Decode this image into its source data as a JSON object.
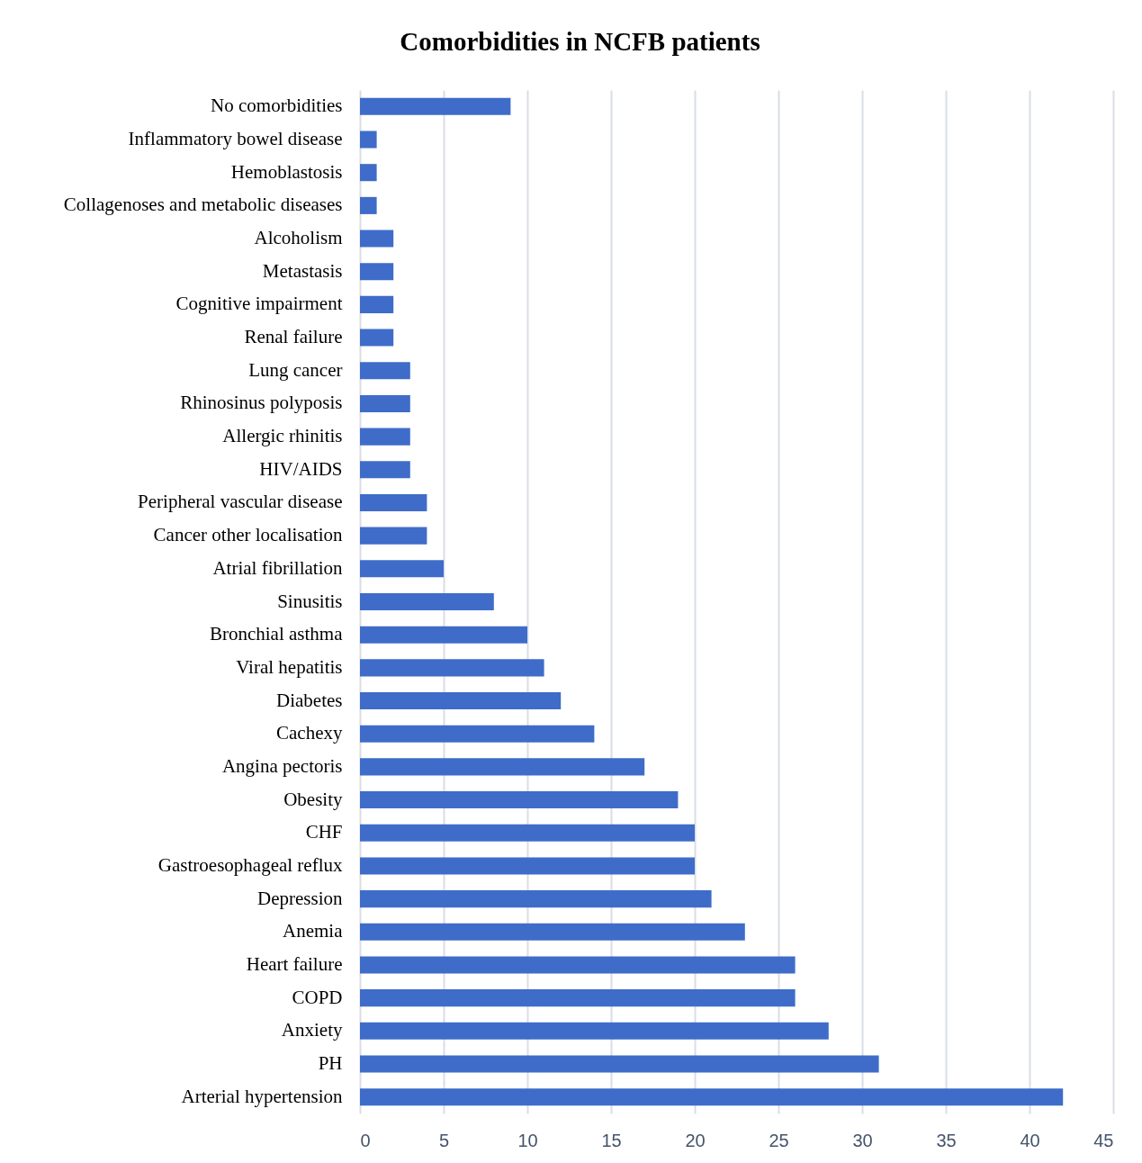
{
  "chart_data": {
    "type": "bar",
    "title": "Comorbidities in NCFB patients",
    "orientation": "horizontal",
    "categories": [
      "No comorbidities",
      "Inflammatory bowel disease",
      "Hemoblastosis",
      "Collagenoses and metabolic diseases",
      "Alcoholism",
      "Metastasis",
      "Cognitive impairment",
      "Renal failure",
      "Lung cancer",
      "Rhinosinus polyposis",
      "Allergic rhinitis",
      "HIV/AIDS",
      "Peripheral vascular disease",
      "Cancer other localisation",
      "Atrial fibrillation",
      "Sinusitis",
      "Bronchial asthma",
      "Viral hepatitis",
      "Diabetes",
      "Cachexy",
      "Angina pectoris",
      "Obesity",
      "CHF",
      "Gastroesophageal reflux",
      "Depression",
      "Anemia",
      "Heart failure",
      "COPD",
      "Anxiety",
      "PH",
      "Arterial hypertension"
    ],
    "values": [
      9,
      1,
      1,
      1,
      2,
      2,
      2,
      2,
      3,
      3,
      3,
      3,
      4,
      4,
      5,
      8,
      10,
      11,
      12,
      14,
      17,
      19,
      20,
      20,
      21,
      23,
      26,
      26,
      28,
      31,
      42
    ],
    "color": "#3f6cc9",
    "xlim": [
      0,
      45
    ],
    "xticks": [
      0,
      5,
      10,
      15,
      20,
      25,
      30,
      35,
      40,
      45
    ],
    "grid": "x"
  }
}
